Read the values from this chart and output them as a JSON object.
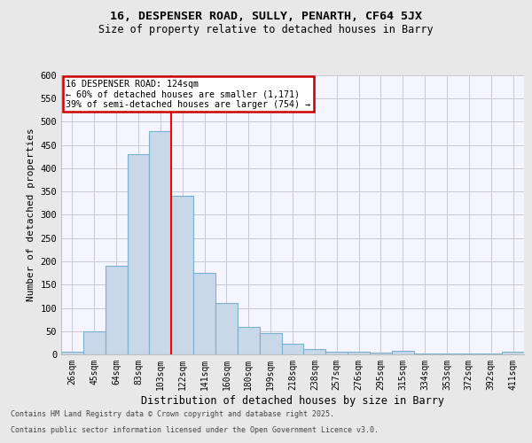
{
  "title1": "16, DESPENSER ROAD, SULLY, PENARTH, CF64 5JX",
  "title2": "Size of property relative to detached houses in Barry",
  "xlabel": "Distribution of detached houses by size in Barry",
  "ylabel": "Number of detached properties",
  "annotation_title": "16 DESPENSER ROAD: 124sqm",
  "annotation_line2": "← 60% of detached houses are smaller (1,171)",
  "annotation_line3": "39% of semi-detached houses are larger (754) →",
  "footer1": "Contains HM Land Registry data © Crown copyright and database right 2025.",
  "footer2": "Contains public sector information licensed under the Open Government Licence v3.0.",
  "categories": [
    "26sqm",
    "45sqm",
    "64sqm",
    "83sqm",
    "103sqm",
    "122sqm",
    "141sqm",
    "160sqm",
    "180sqm",
    "199sqm",
    "218sqm",
    "238sqm",
    "257sqm",
    "276sqm",
    "295sqm",
    "315sqm",
    "334sqm",
    "353sqm",
    "372sqm",
    "392sqm",
    "411sqm"
  ],
  "values": [
    5,
    50,
    190,
    430,
    480,
    340,
    175,
    110,
    60,
    45,
    22,
    12,
    6,
    5,
    3,
    7,
    2,
    1,
    1,
    1,
    5
  ],
  "bar_color": "#c8d8e8",
  "bar_edge_color": "#7ab0cc",
  "property_line_x": 5,
  "annotation_box_color": "#ffffff",
  "annotation_box_edge": "#cc0000",
  "ylim": [
    0,
    600
  ],
  "yticks": [
    0,
    50,
    100,
    150,
    200,
    250,
    300,
    350,
    400,
    450,
    500,
    550,
    600
  ],
  "background_color": "#e8e8e8",
  "plot_bg_color": "#f5f5ff",
  "grid_color": "#c8c8d8"
}
